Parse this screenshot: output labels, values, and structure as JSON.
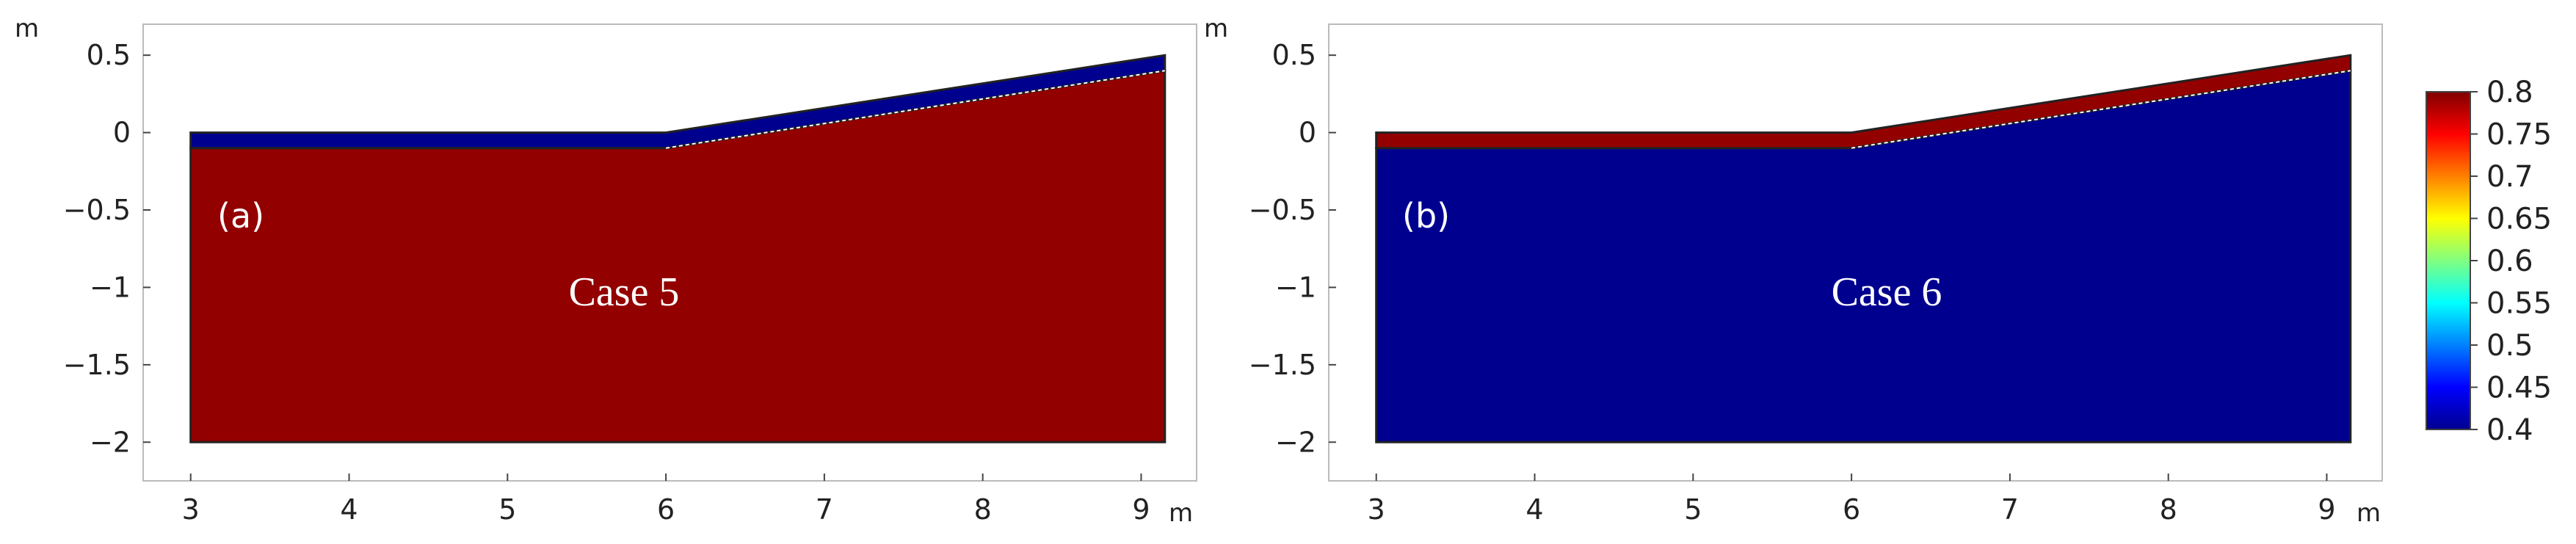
{
  "figure": {
    "panels": [
      {
        "id": "a",
        "panel_label": "(a)",
        "case_label": "Case 5",
        "x_unit": "m",
        "y_unit": "m",
        "bulk_color": "#930000",
        "top_layer_color": "#00008f",
        "x_ticks": [
          "3",
          "4",
          "5",
          "6",
          "7",
          "8",
          "9"
        ],
        "y_ticks": [
          "0.5",
          "0",
          "−0.5",
          "−1",
          "−1.5",
          "−2"
        ]
      },
      {
        "id": "b",
        "panel_label": "(b)",
        "case_label": "Case 6",
        "x_unit": "m",
        "y_unit": "m",
        "bulk_color": "#00008f",
        "top_layer_color": "#930000",
        "x_ticks": [
          "3",
          "4",
          "5",
          "6",
          "7",
          "8",
          "9"
        ],
        "y_ticks": [
          "0.5",
          "0",
          "−0.5",
          "−1",
          "−1.5",
          "−2"
        ]
      }
    ],
    "geometry_data": {
      "x_range": [
        2.7,
        9.35
      ],
      "y_range": [
        -2.25,
        0.7
      ],
      "domain_outline": [
        [
          3,
          0
        ],
        [
          6,
          0
        ],
        [
          9.15,
          0.5
        ],
        [
          9.15,
          -2
        ],
        [
          3,
          -2
        ]
      ],
      "layer_interface": [
        [
          3,
          -0.1
        ],
        [
          6,
          -0.1
        ],
        [
          9.15,
          0.4
        ]
      ]
    },
    "colorbar": {
      "labels": [
        "0.8",
        "0.75",
        "0.7",
        "0.65",
        "0.6",
        "0.55",
        "0.5",
        "0.45",
        "0.4"
      ],
      "min": 0.4,
      "max": 0.8,
      "colors": [
        "#00008f",
        "#0000ff",
        "#0080ff",
        "#00ffff",
        "#80ff80",
        "#ffff00",
        "#ff8000",
        "#ff0000",
        "#800000"
      ]
    }
  }
}
